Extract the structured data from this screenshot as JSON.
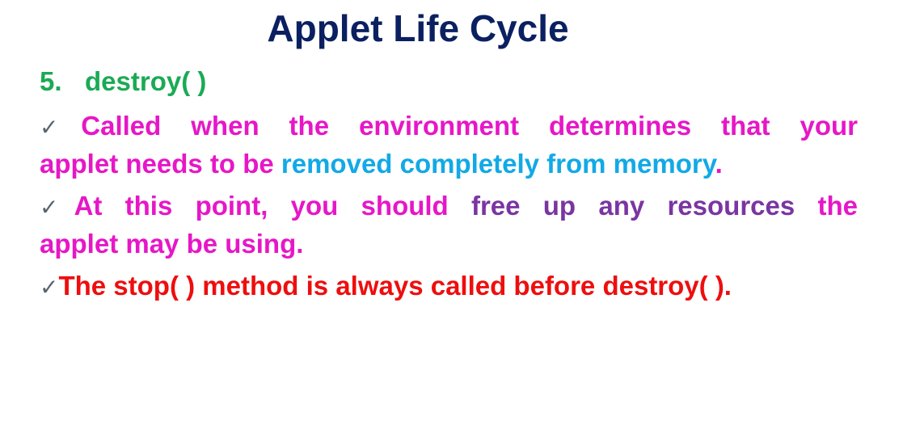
{
  "title": "Applet Life Cycle",
  "section": {
    "number": "5.",
    "name": "destroy( )"
  },
  "check_glyph": "✓",
  "colors": {
    "title": "#0b2060",
    "heading": "#1aaa55",
    "magenta": "#e617c7",
    "cyan": "#12a9e6",
    "purple": "#7a35a2",
    "red": "#ee0e0e",
    "check": "#5a6470"
  },
  "bullets": [
    {
      "line1": "Called when the environment determines that your",
      "line2_a": "applet needs to be ",
      "line2_b": "removed completely from memory",
      "line2_c": "."
    },
    {
      "line1_a": "At this point, you should ",
      "line1_b": "free up any resources",
      "line1_c": " the",
      "line2": "applet may be using."
    },
    {
      "text": "The stop( ) method is always called before destroy( )."
    }
  ]
}
